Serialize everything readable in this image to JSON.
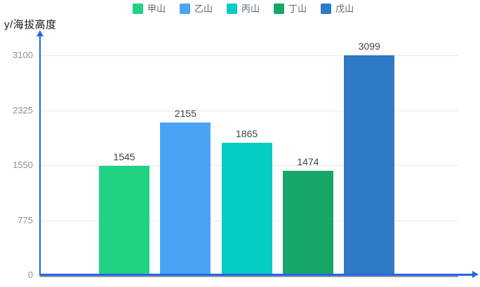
{
  "chart_data": {
    "type": "bar",
    "title": "",
    "ylabel": "y/海拔高度",
    "xlabel": "",
    "categories": [
      "甲山",
      "乙山",
      "丙山",
      "丁山",
      "戊山"
    ],
    "values": [
      1545,
      2155,
      1865,
      1474,
      3099
    ],
    "series_colors": [
      "#20d284",
      "#4aa3f7",
      "#06cdc4",
      "#17a768",
      "#2e7ac6"
    ],
    "value_labels": [
      1545,
      2155,
      1865,
      1474,
      3099
    ],
    "yticks": [
      0,
      775,
      1550,
      2325,
      3100
    ],
    "ylim": [
      0,
      3100
    ],
    "grid": true,
    "legend_position": "top-center",
    "axis_style": "blue arrows on x and y"
  },
  "colors": {
    "axis": "#2367e4",
    "axis_shadow": "#979ca3",
    "grid": "#e8e8e8",
    "tick_text": "#8a9199",
    "value_text": "#3c4350",
    "legend_text": "#5d6673",
    "ylabel_text": "#17181c"
  }
}
